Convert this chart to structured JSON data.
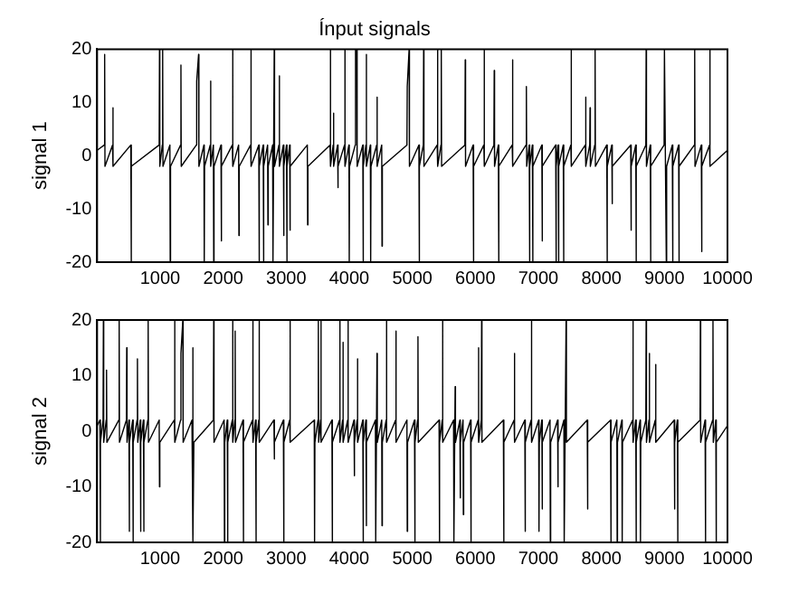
{
  "chart_data": [
    {
      "type": "line",
      "title": "Ínput signals",
      "ylabel": "signal 1",
      "xlim": [
        0,
        10000
      ],
      "xticks": [
        1000,
        2000,
        3000,
        4000,
        5000,
        6000,
        7000,
        8000,
        9000,
        10000
      ],
      "ylim": [
        -20,
        20
      ],
      "yticks": [
        -20,
        -10,
        0,
        10,
        20
      ],
      "grid": false,
      "legend": false,
      "marker": "none",
      "line_style": "solid",
      "series": [
        {
          "color": "#000000",
          "x": [
            0,
            115,
            120,
            125,
            245,
            250,
            255,
            535,
            540,
            545,
            985,
            990,
            995,
            1035,
            1040,
            1045,
            1155,
            1160,
            1165,
            1325,
            1330,
            1335,
            1575,
            1580,
            1610,
            1615,
            1695,
            1700,
            1705,
            1795,
            1800,
            1805,
            1845,
            1850,
            1855,
            1965,
            1970,
            1975,
            2145,
            2150,
            2155,
            2245,
            2250,
            2255,
            2435,
            2440,
            2445,
            2565,
            2570,
            2575,
            2635,
            2640,
            2645,
            2705,
            2710,
            2715,
            2785,
            2790,
            2810,
            2815,
            2885,
            2890,
            2895,
            2955,
            2960,
            2965,
            3005,
            3010,
            3015,
            3055,
            3060,
            3065,
            3335,
            3340,
            3345,
            3695,
            3700,
            3705,
            3745,
            3750,
            3755,
            3815,
            3820,
            3825,
            3925,
            3930,
            3935,
            3995,
            4000,
            4005,
            4095,
            4100,
            4120,
            4125,
            4215,
            4220,
            4225,
            4265,
            4270,
            4275,
            4335,
            4340,
            4345,
            4435,
            4440,
            4445,
            4515,
            4520,
            4525,
            4915,
            4920,
            4950,
            4955,
            5105,
            5110,
            5115,
            5175,
            5180,
            5185,
            5395,
            5400,
            5405,
            5455,
            5460,
            5465,
            5835,
            5840,
            5845,
            5965,
            5970,
            5975,
            6135,
            6140,
            6145,
            6295,
            6300,
            6305,
            6365,
            6370,
            6375,
            6585,
            6590,
            6595,
            6805,
            6810,
            6815,
            6855,
            6860,
            6865,
            6905,
            6910,
            6915,
            7055,
            7060,
            7065,
            7275,
            7280,
            7285,
            7315,
            7320,
            7325,
            7395,
            7400,
            7405,
            7515,
            7520,
            7525,
            7745,
            7750,
            7755,
            7815,
            7820,
            7825,
            7895,
            7900,
            7905,
            8085,
            8090,
            8095,
            8165,
            8170,
            8175,
            8465,
            8470,
            8475,
            8545,
            8550,
            8555,
            8705,
            8710,
            8715,
            8775,
            8780,
            8785,
            8995,
            9000,
            9030,
            9035,
            9125,
            9130,
            9135,
            9225,
            9230,
            9235,
            9475,
            9480,
            9485,
            9585,
            9590,
            9595,
            9715,
            9720,
            9725,
            10000
          ],
          "values": [
            1,
            2,
            19,
            -2,
            2,
            9,
            -2,
            2,
            -20,
            -2,
            2,
            20,
            -2,
            2,
            20,
            -2,
            2,
            -20,
            -2,
            2,
            17,
            -2,
            2,
            14,
            19,
            -2,
            2,
            -20,
            -2,
            2,
            14,
            -2,
            2,
            -20,
            -2,
            2,
            -16,
            -2,
            2,
            20,
            -2,
            2,
            -15,
            -2,
            2,
            20,
            -2,
            2,
            -20,
            -2,
            2,
            -20,
            -2,
            2,
            -13,
            -2,
            2,
            -20,
            20,
            -2,
            2,
            15,
            -2,
            2,
            -15,
            -2,
            2,
            -20,
            -2,
            2,
            -14,
            -2,
            2,
            -13,
            -2,
            2,
            20,
            -2,
            2,
            8,
            -2,
            2,
            -6,
            -2,
            2,
            20,
            -2,
            2,
            -20,
            -2,
            2,
            20,
            20,
            -2,
            2,
            -20,
            -2,
            2,
            19,
            -2,
            2,
            -20,
            -2,
            2,
            11,
            -2,
            2,
            -17,
            -2,
            2,
            13,
            20,
            -2,
            2,
            -20,
            -2,
            2,
            20,
            -2,
            2,
            20,
            -2,
            2,
            20,
            -2,
            2,
            18,
            -2,
            2,
            -20,
            -2,
            2,
            20,
            -2,
            2,
            16,
            -2,
            2,
            -20,
            -2,
            2,
            18,
            -2,
            2,
            13,
            -2,
            2,
            -20,
            -2,
            2,
            -20,
            -2,
            2,
            -16,
            -2,
            2,
            -20,
            -2,
            2,
            -20,
            -2,
            2,
            -20,
            -2,
            2,
            20,
            -2,
            2,
            11,
            -2,
            2,
            9,
            -2,
            2,
            20,
            -2,
            2,
            -20,
            -2,
            2,
            -9,
            -2,
            2,
            -14,
            -2,
            2,
            -20,
            -2,
            2,
            20,
            -2,
            2,
            -20,
            -2,
            2,
            20,
            -20,
            -2,
            2,
            -20,
            -2,
            2,
            -20,
            -2,
            2,
            20,
            -2,
            2,
            -18,
            -2,
            2,
            20,
            -2,
            1
          ]
        }
      ]
    },
    {
      "type": "line",
      "ylabel": "signal 2",
      "xlim": [
        0,
        10000
      ],
      "xticks": [
        1000,
        2000,
        3000,
        4000,
        5000,
        6000,
        7000,
        8000,
        9000,
        10000
      ],
      "ylim": [
        -20,
        20
      ],
      "yticks": [
        -20,
        -10,
        0,
        10,
        20
      ],
      "grid": false,
      "legend": false,
      "marker": "none",
      "line_style": "solid",
      "series": [
        {
          "color": "#000000",
          "x": [
            0,
            45,
            50,
            55,
            95,
            100,
            105,
            145,
            150,
            155,
            345,
            350,
            355,
            465,
            470,
            475,
            505,
            510,
            515,
            565,
            570,
            575,
            635,
            640,
            645,
            685,
            690,
            695,
            735,
            740,
            745,
            805,
            810,
            815,
            985,
            990,
            995,
            1225,
            1230,
            1235,
            1325,
            1330,
            1360,
            1365,
            1505,
            1510,
            1530,
            1535,
            1845,
            1850,
            1855,
            2015,
            2020,
            2025,
            2065,
            2070,
            2075,
            2145,
            2150,
            2155,
            2185,
            2190,
            2195,
            2315,
            2320,
            2325,
            2465,
            2470,
            2475,
            2515,
            2520,
            2525,
            2565,
            2570,
            2575,
            2805,
            2810,
            2815,
            2955,
            2960,
            2965,
            3055,
            3060,
            3065,
            3445,
            3450,
            3455,
            3505,
            3510,
            3515,
            3545,
            3550,
            3555,
            3725,
            3730,
            3735,
            3845,
            3850,
            3855,
            3895,
            3900,
            3905,
            3975,
            3980,
            3985,
            4075,
            4080,
            4085,
            4125,
            4130,
            4135,
            4215,
            4220,
            4225,
            4265,
            4270,
            4275,
            4415,
            4420,
            4440,
            4445,
            4515,
            4520,
            4525,
            4585,
            4590,
            4595,
            4735,
            4740,
            4745,
            4915,
            4920,
            4925,
            5035,
            5040,
            5045,
            5085,
            5090,
            5095,
            5425,
            5430,
            5435,
            5475,
            5480,
            5485,
            5655,
            5660,
            5680,
            5685,
            5755,
            5760,
            5765,
            5805,
            5810,
            5815,
            5925,
            5930,
            5935,
            6045,
            6050,
            6055,
            6095,
            6100,
            6105,
            6445,
            6450,
            6455,
            6615,
            6620,
            6625,
            6785,
            6790,
            6795,
            6885,
            6890,
            6895,
            7005,
            7010,
            7015,
            7055,
            7060,
            7065,
            7185,
            7190,
            7195,
            7305,
            7310,
            7315,
            7405,
            7410,
            7440,
            7445,
            7775,
            7780,
            7785,
            8145,
            8150,
            8155,
            8245,
            8250,
            8255,
            8325,
            8330,
            8335,
            8495,
            8500,
            8505,
            8545,
            8550,
            8555,
            8615,
            8620,
            8625,
            8705,
            8710,
            8715,
            8755,
            8760,
            8765,
            8855,
            8860,
            8865,
            9155,
            9160,
            9165,
            9205,
            9210,
            9215,
            9565,
            9570,
            9575,
            9645,
            9650,
            9655,
            9765,
            9770,
            9775,
            9815,
            9820,
            9825,
            10000
          ],
          "values": [
            1,
            2,
            -20,
            -2,
            2,
            20,
            -2,
            2,
            11,
            -2,
            2,
            20,
            -2,
            2,
            15,
            -2,
            2,
            -18,
            -2,
            2,
            -20,
            -2,
            2,
            13,
            -2,
            2,
            -18,
            -2,
            2,
            -18,
            -2,
            2,
            20,
            -2,
            2,
            -10,
            -2,
            2,
            20,
            -2,
            2,
            14,
            20,
            -2,
            2,
            15,
            -20,
            -2,
            2,
            20,
            -2,
            2,
            -20,
            -2,
            2,
            -20,
            -2,
            2,
            20,
            -2,
            2,
            18,
            -2,
            2,
            -20,
            -2,
            2,
            20,
            -2,
            2,
            -20,
            -2,
            2,
            20,
            -2,
            2,
            -5,
            -2,
            2,
            -20,
            -2,
            2,
            20,
            -2,
            2,
            -20,
            -2,
            2,
            20,
            -2,
            2,
            20,
            -2,
            2,
            -20,
            -2,
            2,
            20,
            -2,
            2,
            16,
            -2,
            2,
            20,
            -2,
            2,
            -8,
            -2,
            2,
            13,
            -2,
            2,
            -20,
            -2,
            2,
            -17,
            -2,
            2,
            -20,
            14,
            -2,
            2,
            -17,
            -2,
            2,
            20,
            -2,
            2,
            18,
            -2,
            2,
            -18,
            -2,
            2,
            -20,
            -2,
            2,
            17,
            -2,
            2,
            -20,
            -2,
            2,
            20,
            -2,
            2,
            -20,
            8,
            -2,
            2,
            -12,
            -2,
            2,
            -15,
            -2,
            2,
            -20,
            -2,
            2,
            15,
            -2,
            2,
            20,
            -2,
            2,
            -20,
            -2,
            2,
            14,
            -2,
            2,
            -18,
            -2,
            2,
            20,
            -2,
            2,
            -18,
            -2,
            2,
            -14,
            -2,
            2,
            -20,
            -2,
            2,
            -10,
            -2,
            2,
            -20,
            20,
            -2,
            2,
            -14,
            -2,
            2,
            -20,
            -2,
            2,
            -20,
            -2,
            2,
            -20,
            -2,
            2,
            20,
            -2,
            2,
            -20,
            -2,
            2,
            -20,
            -2,
            2,
            20,
            -2,
            2,
            14,
            -2,
            2,
            12,
            -2,
            2,
            -14,
            -2,
            2,
            -20,
            -2,
            2,
            20,
            -2,
            2,
            -20,
            -2,
            2,
            20,
            -2,
            2,
            -20,
            -2,
            1
          ]
        }
      ]
    }
  ]
}
